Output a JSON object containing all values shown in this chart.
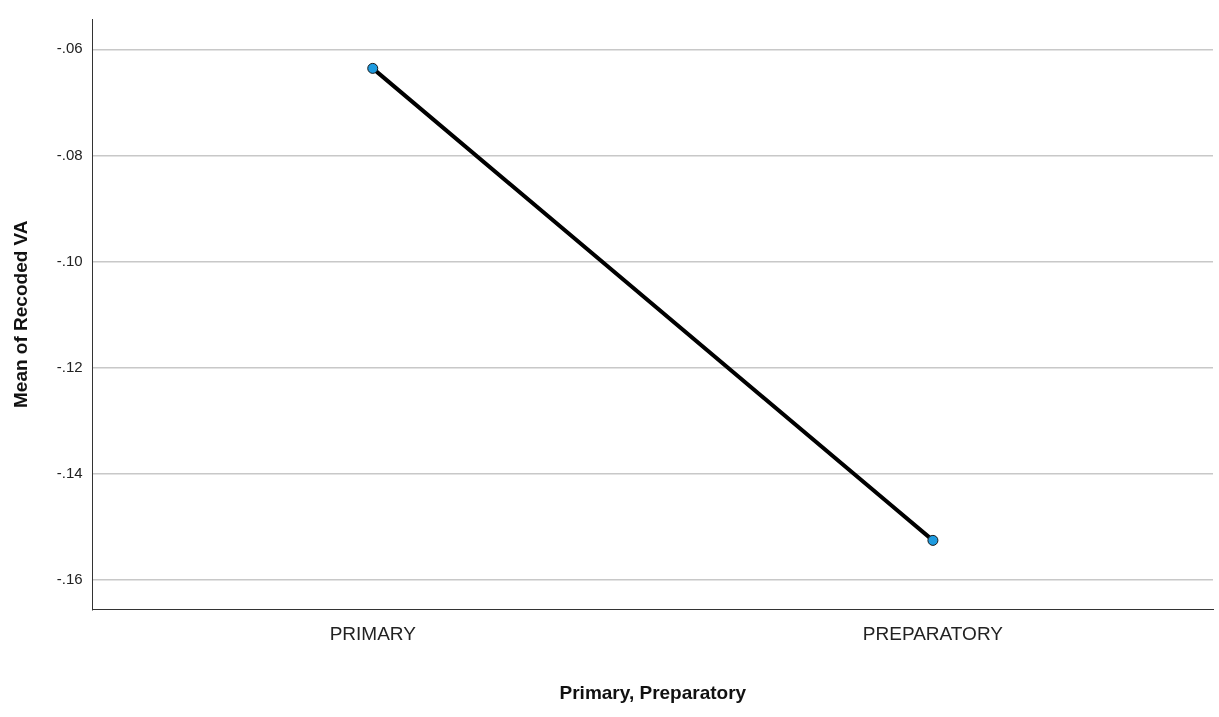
{
  "chart_data": {
    "type": "line",
    "xlabel": "Primary, Preparatory",
    "ylabel": "Mean of Recoded VA",
    "categories": [
      "PRIMARY",
      "PREPARATORY"
    ],
    "series": [
      {
        "color": "#000000",
        "values": [
          -0.0636,
          -0.1525
        ]
      }
    ],
    "ylim": [
      -0.1655,
      -0.0543
    ],
    "yticks": [
      {
        "value": -0.16,
        "label": "-.16"
      },
      {
        "value": -0.14,
        "label": "-.14"
      },
      {
        "value": -0.12,
        "label": "-.12"
      },
      {
        "value": -0.1,
        "label": "-.10"
      },
      {
        "value": -0.08,
        "label": "-.08"
      },
      {
        "value": -0.06,
        "label": "-.06"
      }
    ],
    "grid": "y",
    "legend": false,
    "marker": "circle",
    "line_style": "solid"
  }
}
